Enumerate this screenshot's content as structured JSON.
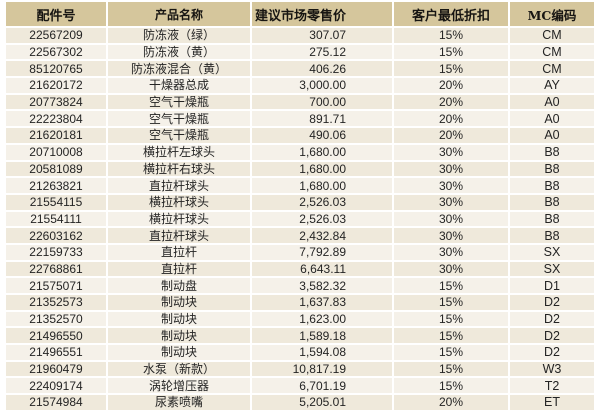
{
  "colors": {
    "header_bg": "#d5c69c",
    "header_text": "#171512",
    "row_odd_bg": "#efe9db",
    "row_even_bg": "#f5f1e9",
    "separator": "#ffffff",
    "body_text": "#242424"
  },
  "table": {
    "columns": [
      {
        "key": "part",
        "label": "配件号"
      },
      {
        "key": "name",
        "label": "产品名称"
      },
      {
        "key": "price",
        "label": "建议市场零售价"
      },
      {
        "key": "discount",
        "label": "客户最低折扣"
      },
      {
        "key": "mc",
        "label": "MC编码"
      }
    ],
    "rows": [
      {
        "part": "22567209",
        "name": "防冻液（绿）",
        "price": "307.07",
        "discount": "15%",
        "mc": "CM"
      },
      {
        "part": "22567302",
        "name": "防冻液（黄）",
        "price": "275.12",
        "discount": "15%",
        "mc": "CM"
      },
      {
        "part": "85120765",
        "name": "防冻液混合（黄）",
        "price": "406.26",
        "discount": "15%",
        "mc": "CM"
      },
      {
        "part": "21620172",
        "name": "干燥器总成",
        "price": "3,000.00",
        "discount": "20%",
        "mc": "AY"
      },
      {
        "part": "20773824",
        "name": "空气干燥瓶",
        "price": "700.00",
        "discount": "20%",
        "mc": "A0"
      },
      {
        "part": "22223804",
        "name": "空气干燥瓶",
        "price": "891.71",
        "discount": "20%",
        "mc": "A0"
      },
      {
        "part": "21620181",
        "name": "空气干燥瓶",
        "price": "490.06",
        "discount": "20%",
        "mc": "A0"
      },
      {
        "part": "20710008",
        "name": "横拉杆左球头",
        "price": "1,680.00",
        "discount": "30%",
        "mc": "B8"
      },
      {
        "part": "20581089",
        "name": "横拉杆右球头",
        "price": "1,680.00",
        "discount": "30%",
        "mc": "B8"
      },
      {
        "part": "21263821",
        "name": "直拉杆球头",
        "price": "1,680.00",
        "discount": "30%",
        "mc": "B8"
      },
      {
        "part": "21554115",
        "name": "横拉杆球头",
        "price": "2,526.03",
        "discount": "30%",
        "mc": "B8"
      },
      {
        "part": "21554111",
        "name": "横拉杆球头",
        "price": "2,526.03",
        "discount": "30%",
        "mc": "B8"
      },
      {
        "part": "22603162",
        "name": "直拉杆球头",
        "price": "2,432.84",
        "discount": "30%",
        "mc": "B8"
      },
      {
        "part": "22159733",
        "name": "直拉杆",
        "price": "7,792.89",
        "discount": "30%",
        "mc": "SX"
      },
      {
        "part": "22768861",
        "name": "直拉杆",
        "price": "6,643.11",
        "discount": "30%",
        "mc": "SX"
      },
      {
        "part": "21575071",
        "name": "制动盘",
        "price": "3,582.32",
        "discount": "15%",
        "mc": "D1"
      },
      {
        "part": "21352573",
        "name": "制动块",
        "price": "1,637.83",
        "discount": "15%",
        "mc": "D2"
      },
      {
        "part": "21352570",
        "name": "制动块",
        "price": "1,623.00",
        "discount": "15%",
        "mc": "D2"
      },
      {
        "part": "21496550",
        "name": "制动块",
        "price": "1,589.18",
        "discount": "15%",
        "mc": "D2"
      },
      {
        "part": "21496551",
        "name": "制动块",
        "price": "1,594.08",
        "discount": "15%",
        "mc": "D2"
      },
      {
        "part": "21960479",
        "name": "水泵（新款）",
        "price": "10,817.19",
        "discount": "15%",
        "mc": "W3"
      },
      {
        "part": "22409174",
        "name": "涡轮增压器",
        "price": "6,701.19",
        "discount": "15%",
        "mc": "T2"
      },
      {
        "part": "21574984",
        "name": "尿素喷嘴",
        "price": "5,205.01",
        "discount": "20%",
        "mc": "ET"
      }
    ]
  }
}
